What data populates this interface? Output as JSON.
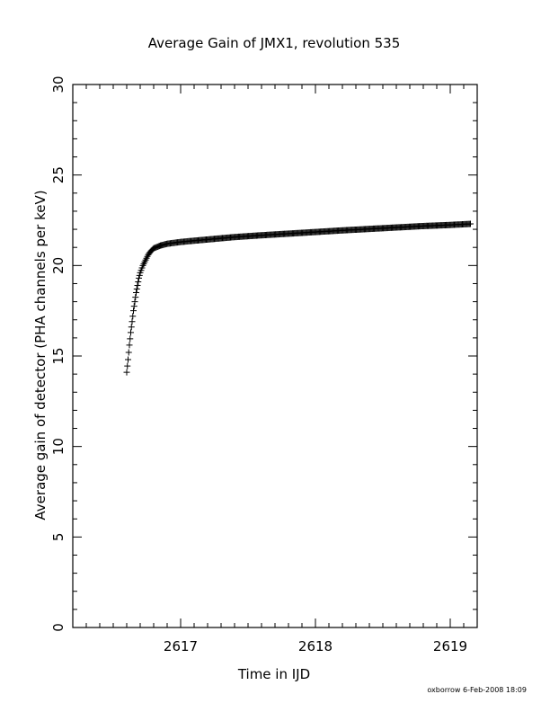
{
  "chart_data": {
    "type": "scatter",
    "title": "Average Gain of JMX1, revolution 535",
    "xlabel": "Time in IJD",
    "ylabel": "Average gain of detector (PHA channels per keV)",
    "xlim": [
      2616.2,
      2619.2
    ],
    "ylim": [
      0,
      30
    ],
    "x_ticks": [
      2617,
      2618,
      2619
    ],
    "x_tick_labels": [
      "2617",
      "2618",
      "2619"
    ],
    "y_ticks": [
      0,
      5,
      10,
      15,
      20,
      25,
      30
    ],
    "y_tick_labels": [
      "0",
      "5",
      "10",
      "15",
      "20",
      "25",
      "30"
    ],
    "marker": "plus",
    "grid": false,
    "footer": "oxborrow   6-Feb-2008 18:09",
    "series": [
      {
        "points": [
          [
            2616.6,
            14.1
          ],
          [
            2616.61,
            14.8
          ],
          [
            2616.62,
            15.6
          ],
          [
            2616.63,
            16.3
          ],
          [
            2616.64,
            16.9
          ],
          [
            2616.65,
            17.5
          ],
          [
            2616.66,
            18.0
          ],
          [
            2616.67,
            18.5
          ],
          [
            2616.68,
            18.9
          ],
          [
            2616.69,
            19.3
          ],
          [
            2616.7,
            19.6
          ],
          [
            2616.72,
            20.0
          ],
          [
            2616.74,
            20.3
          ],
          [
            2616.76,
            20.6
          ],
          [
            2616.78,
            20.8
          ],
          [
            2616.8,
            20.95
          ],
          [
            2616.85,
            21.1
          ],
          [
            2616.9,
            21.2
          ],
          [
            2617.0,
            21.3
          ],
          [
            2617.1,
            21.37
          ],
          [
            2617.25,
            21.47
          ],
          [
            2617.4,
            21.57
          ],
          [
            2617.6,
            21.67
          ],
          [
            2617.8,
            21.76
          ],
          [
            2618.0,
            21.85
          ],
          [
            2618.2,
            21.94
          ],
          [
            2618.4,
            22.02
          ],
          [
            2618.6,
            22.1
          ],
          [
            2618.8,
            22.18
          ],
          [
            2619.0,
            22.24
          ],
          [
            2619.15,
            22.3
          ]
        ]
      }
    ]
  }
}
